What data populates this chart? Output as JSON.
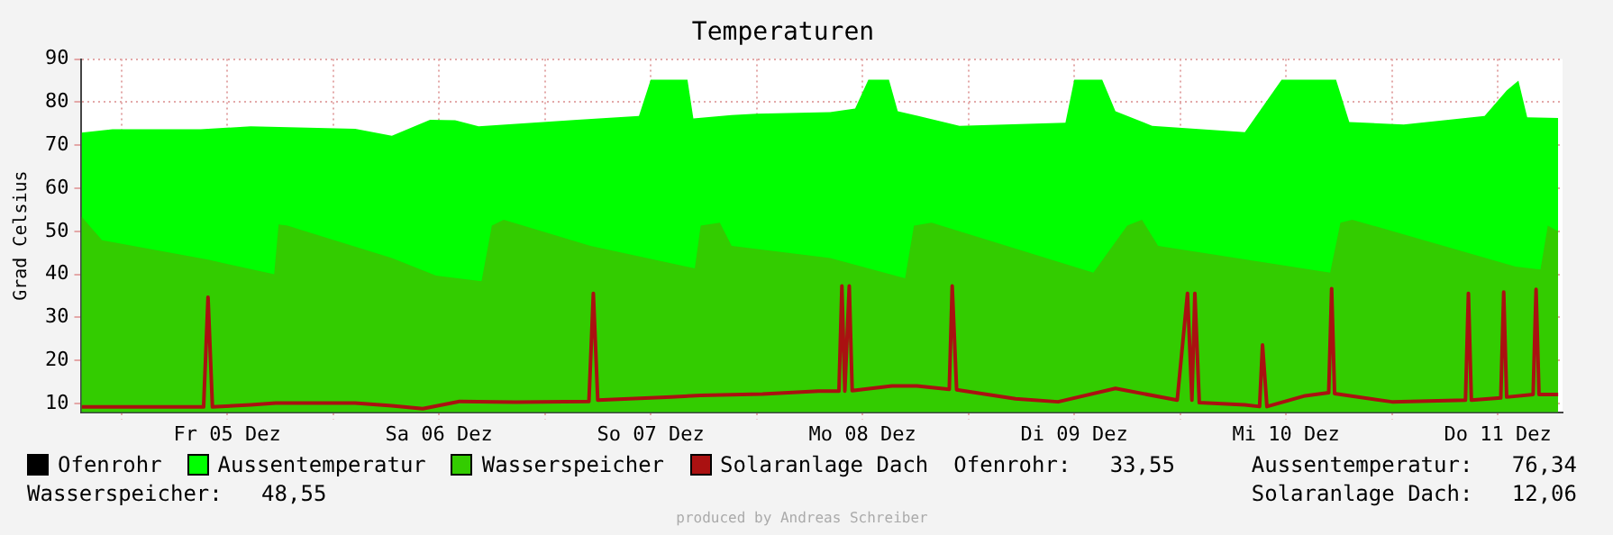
{
  "chart_data": {
    "type": "area",
    "title": "Temperaturen",
    "ylabel": "Grad Celsius",
    "xlim": [
      "--12-04T19:30",
      "--12-11T19:20"
    ],
    "xticks": [
      {
        "value": "--12-05T00:00",
        "label": null
      },
      {
        "value": "--12-05T12:00",
        "label": "Fr 05 Dez"
      },
      {
        "value": "--12-06T00:00",
        "label": null
      },
      {
        "value": "--12-06T12:00",
        "label": "Sa 06 Dez"
      },
      {
        "value": "--12-07T00:00",
        "label": null
      },
      {
        "value": "--12-07T12:00",
        "label": "So 07 Dez"
      },
      {
        "value": "--12-08T00:00",
        "label": null
      },
      {
        "value": "--12-08T12:00",
        "label": "Mo 08 Dez"
      },
      {
        "value": "--12-09T00:00",
        "label": null
      },
      {
        "value": "--12-09T12:00",
        "label": "Di 09 Dez"
      },
      {
        "value": "--12-10T00:00",
        "label": null
      },
      {
        "value": "--12-10T12:00",
        "label": "Mi 10 Dez"
      },
      {
        "value": "--12-11T00:00",
        "label": null
      },
      {
        "value": "--12-11T12:00",
        "label": "Do 11 Dez"
      }
    ],
    "ylim": [
      8,
      90
    ],
    "yticks": [
      10,
      20,
      30,
      40,
      50,
      60,
      70,
      80,
      90
    ],
    "grid": true,
    "legend": "bottom",
    "marker": "none",
    "line_style": "solid",
    "series": [
      {
        "name": "Ofenrohr",
        "color": "#000000",
        "type": "line"
      },
      {
        "name": "Aussentemperatur",
        "color": "#00ff00",
        "x": [
          "--12-04T19:30",
          "--12-04T23:00",
          "--12-05T09:00",
          "--12-05T14:40",
          "--12-06T02:30",
          "--12-06T06:40",
          "--12-06T11:00",
          "--12-06T13:50",
          "--12-06T16:30",
          "--12-07T03:40",
          "--12-07T10:40",
          "--12-07T12:00",
          "--12-07T16:10",
          "--12-07T16:50",
          "--12-07T21:10",
          "--12-08T00:00",
          "--12-08T08:20",
          "--12-08T11:10",
          "--12-08T12:40",
          "--12-08T15:00",
          "--12-08T16:00",
          "--12-08T23:00",
          "--12-09T11:00",
          "--12-09T12:00",
          "--12-09T15:10",
          "--12-09T16:40",
          "--12-09T20:50",
          "--12-10T07:20",
          "--12-10T11:30",
          "--12-10T17:40",
          "--12-10T19:10",
          "--12-11T01:20",
          "--12-11T10:30",
          "--12-11T13:00",
          "--12-11T14:20",
          "--12-11T15:20",
          "--12-11T18:50"
        ],
        "values": [
          72.9,
          73.7,
          73.7,
          74.4,
          73.8,
          72.2,
          75.9,
          75.8,
          74.4,
          75.9,
          76.8,
          85.2,
          85.2,
          76.2,
          77,
          77.3,
          77.7,
          78.5,
          85.2,
          85.2,
          77.9,
          74.5,
          75.2,
          85.2,
          85.2,
          77.9,
          74.5,
          73,
          85.2,
          85.2,
          75.4,
          74.8,
          76.8,
          82.7,
          85,
          76.5,
          76.3
        ]
      },
      {
        "name": "Wasserspeicher",
        "color": "#33cc00",
        "x": [
          "--12-04T19:30",
          "--12-04T21:50",
          "--12-05T09:50",
          "--12-05T17:20",
          "--12-05T17:50",
          "--12-05T18:50",
          "--12-06T06:40",
          "--12-06T11:40",
          "--12-06T16:50",
          "--12-06T18:00",
          "--12-06T19:20",
          "--12-07T05:10",
          "--12-07T17:00",
          "--12-07T17:40",
          "--12-07T19:50",
          "--12-07T21:10",
          "--12-08T08:20",
          "--12-08T16:50",
          "--12-08T17:50",
          "--12-08T19:50",
          "--12-09T14:10",
          "--12-09T18:00",
          "--12-09T19:40",
          "--12-09T21:30",
          "--12-10T17:00",
          "--12-10T18:10",
          "--12-10T19:30",
          "--12-11T01:20",
          "--12-11T14:00",
          "--12-11T16:50",
          "--12-11T17:40",
          "--12-11T18:50"
        ],
        "values": [
          53.4,
          47.9,
          43.4,
          40,
          51.6,
          51.3,
          43.8,
          39.7,
          38.4,
          51.3,
          52.7,
          46.6,
          41.4,
          51.3,
          52,
          46.6,
          43.8,
          39.1,
          51.3,
          52,
          40.4,
          51.3,
          52.7,
          46.6,
          40.4,
          52,
          52.7,
          49.3,
          41.8,
          41.1,
          51.3,
          50
        ]
      },
      {
        "name": "Solaranlage Dach",
        "color": "#aa1111",
        "type": "line",
        "x": [
          "--12-04T19:30",
          "--12-05T09:20",
          "--12-05T09:50",
          "--12-05T10:20",
          "--12-05T14:40",
          "--12-05T17:30",
          "--12-06T02:30",
          "--12-06T06:40",
          "--12-06T10:10",
          "--12-06T14:20",
          "--12-06T20:40",
          "--12-07T05:00",
          "--12-07T05:30",
          "--12-07T06:00",
          "--12-07T14:20",
          "--12-07T17:40",
          "--12-08T00:40",
          "--12-08T07:00",
          "--12-08T09:20",
          "--12-08T09:40",
          "--12-08T10:00",
          "--12-08T10:30",
          "--12-08T10:50",
          "--12-08T15:20",
          "--12-08T18:10",
          "--12-08T21:50",
          "--12-08T22:10",
          "--12-08T22:40",
          "--12-09T05:20",
          "--12-09T10:10",
          "--12-09T16:40",
          "--12-09T23:40",
          "--12-10T00:50",
          "--12-10T01:20",
          "--12-10T01:40",
          "--12-10T02:10",
          "--12-10T07:20",
          "--12-10T09:00",
          "--12-10T09:20",
          "--12-10T09:50",
          "--12-10T14:10",
          "--12-10T16:50",
          "--12-10T17:10",
          "--12-10T17:30",
          "--12-11T00:00",
          "--12-11T08:20",
          "--12-11T08:40",
          "--12-11T09:00",
          "--12-11T12:20",
          "--12-11T12:40",
          "--12-11T13:00",
          "--12-11T16:00",
          "--12-11T16:20",
          "--12-11T16:40",
          "--12-11T18:50"
        ],
        "values": [
          9.2,
          9.2,
          34.7,
          9.2,
          9.7,
          10.1,
          10.1,
          9.5,
          8.8,
          10.5,
          10.3,
          10.5,
          35.6,
          10.8,
          11.5,
          11.9,
          12.2,
          12.9,
          12.9,
          37.3,
          12.9,
          37.3,
          13,
          14.1,
          14.1,
          13.3,
          37.3,
          13.2,
          11.1,
          10.4,
          13.5,
          10.8,
          35.6,
          10.8,
          35.6,
          10.2,
          9.7,
          9.3,
          23.6,
          9.3,
          11.8,
          12.5,
          36.7,
          12.3,
          10.4,
          10.8,
          35.6,
          10.8,
          11.3,
          35.9,
          11.5,
          12.1,
          36.5,
          12.1,
          12.1
        ]
      }
    ],
    "annotations": [
      "Ofenrohr:   33,55",
      "Aussentemperatur:   76,34",
      "Wasserspeicher:   48,55",
      "Solaranlage Dach:   12,06",
      "produced by Andreas Schreiber"
    ]
  }
}
